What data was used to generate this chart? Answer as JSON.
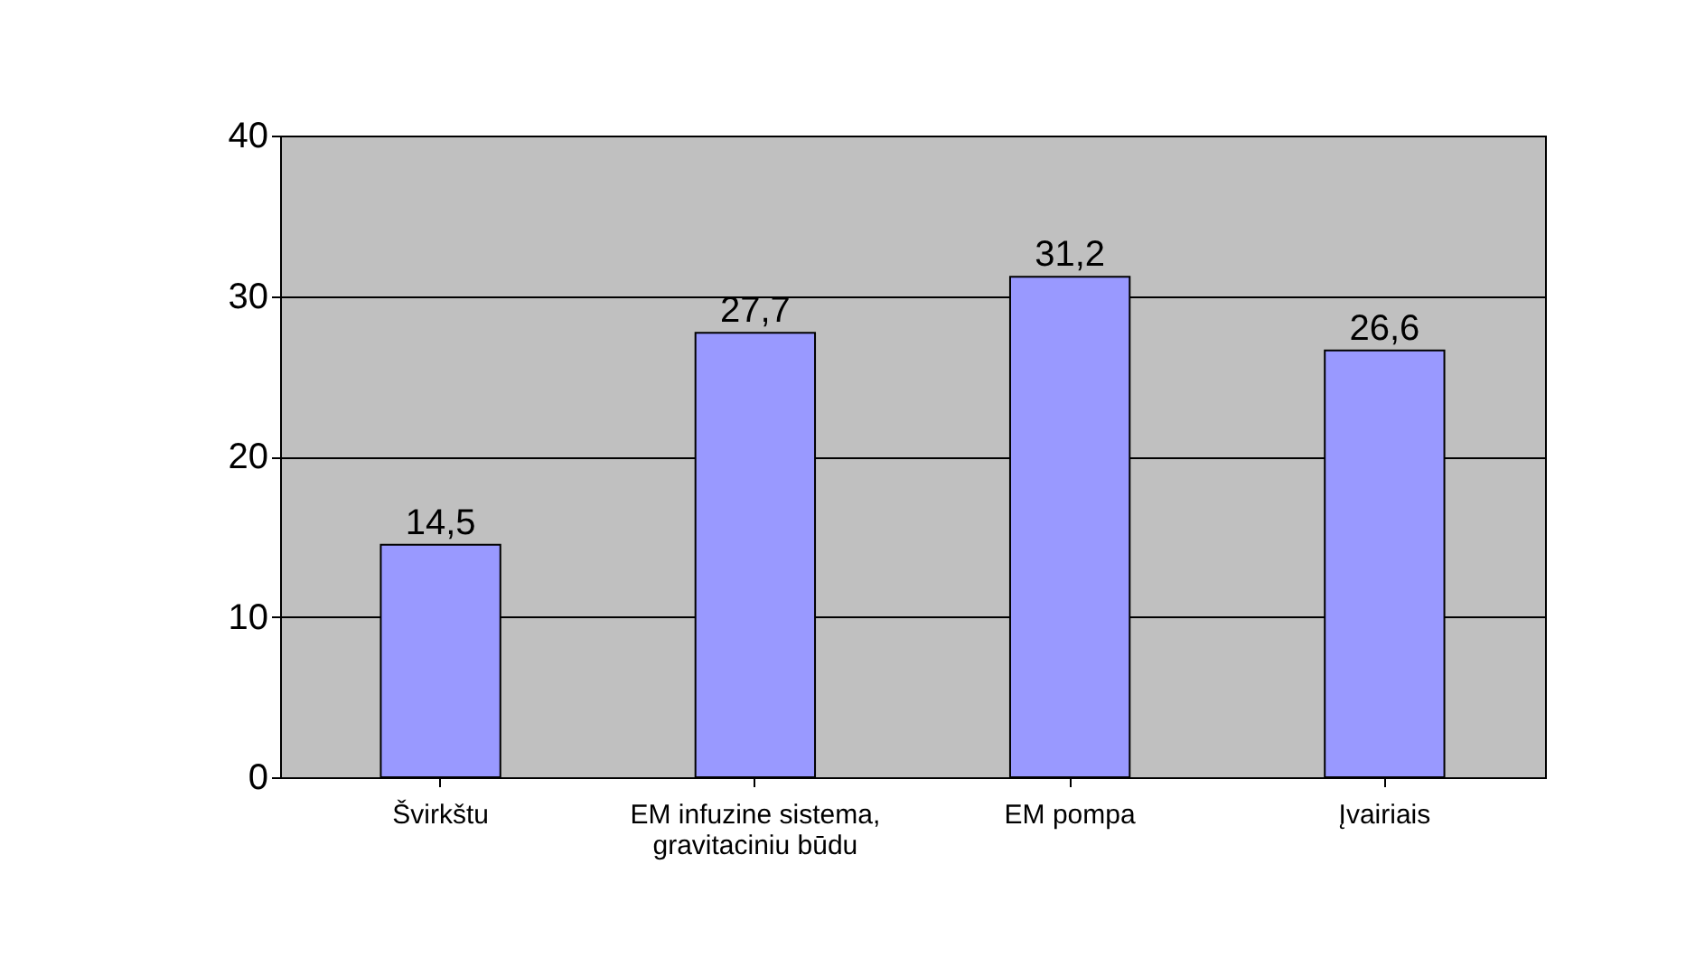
{
  "chart_data": {
    "type": "bar",
    "categories": [
      "Švirkštu",
      "EM infuzine sistema, gravitaciniu būdu",
      "EM pompa",
      "Įvairiais"
    ],
    "values": [
      14.5,
      27.7,
      31.2,
      26.6
    ],
    "color": "#9999ff",
    "value_labels": [
      "14,5",
      "27,7",
      "31,2",
      "26,6"
    ],
    "ylim": [
      0,
      40
    ],
    "yticks": [
      0,
      10,
      20,
      30,
      40
    ],
    "grid": "y"
  }
}
